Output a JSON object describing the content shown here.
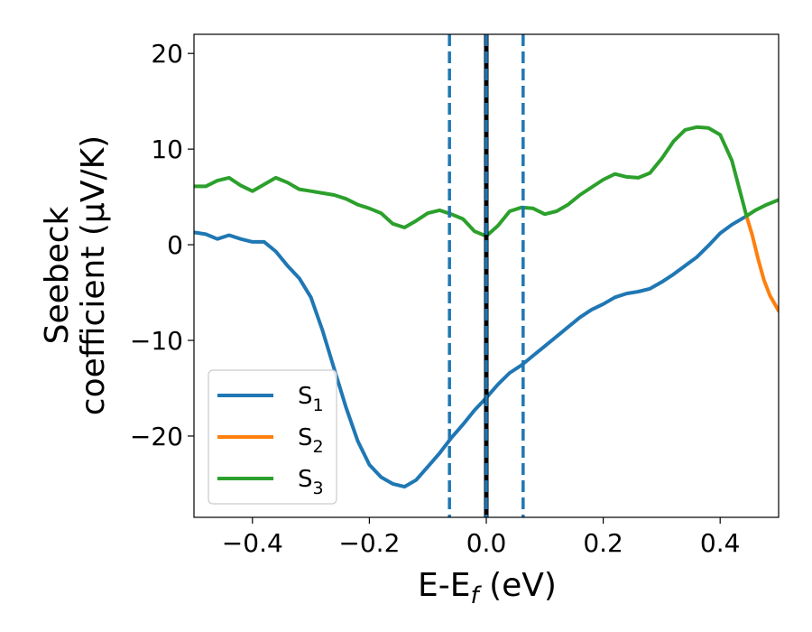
{
  "chart_data": {
    "type": "line",
    "xlabel_main": "E-E",
    "xlabel_sub": "f",
    "xlabel_tail": " (eV)",
    "ylabel_line1": "Seebeck",
    "ylabel_line2": "coefficient  (μV/K)",
    "xlim": [
      -0.5,
      0.5
    ],
    "ylim": [
      -28.5,
      22
    ],
    "xticks": [
      -0.4,
      -0.2,
      0.0,
      0.2,
      0.4
    ],
    "xtick_labels": [
      "−0.4",
      "−0.2",
      "0.0",
      "0.2",
      "0.4"
    ],
    "yticks": [
      -20,
      -10,
      0,
      10,
      20
    ],
    "ytick_labels": [
      "−20",
      "−10",
      "0",
      "10",
      "20"
    ],
    "grid": false,
    "legend_position": "lower-left",
    "vlines": [
      {
        "x": -0.063,
        "style": "dashed",
        "color": "#1f77b4"
      },
      {
        "x": 0.0,
        "style": "solid",
        "color": "#000000"
      },
      {
        "x": 0.0,
        "style": "dashed",
        "color": "#1f77b4"
      },
      {
        "x": 0.063,
        "style": "dashed",
        "color": "#1f77b4"
      }
    ],
    "series": [
      {
        "name": "S",
        "sub": "1",
        "color": "#1f77b4",
        "points": [
          [
            -0.5,
            1.3
          ],
          [
            -0.48,
            1.1
          ],
          [
            -0.46,
            0.6
          ],
          [
            -0.44,
            1.0
          ],
          [
            -0.42,
            0.6
          ],
          [
            -0.4,
            0.3
          ],
          [
            -0.38,
            0.3
          ],
          [
            -0.36,
            -0.7
          ],
          [
            -0.34,
            -2.2
          ],
          [
            -0.32,
            -3.5
          ],
          [
            -0.3,
            -5.5
          ],
          [
            -0.28,
            -9.0
          ],
          [
            -0.26,
            -13.0
          ],
          [
            -0.24,
            -17.0
          ],
          [
            -0.22,
            -20.5
          ],
          [
            -0.2,
            -23.0
          ],
          [
            -0.18,
            -24.3
          ],
          [
            -0.16,
            -25.0
          ],
          [
            -0.14,
            -25.3
          ],
          [
            -0.12,
            -24.6
          ],
          [
            -0.1,
            -23.2
          ],
          [
            -0.08,
            -21.8
          ],
          [
            -0.06,
            -20.2
          ],
          [
            -0.04,
            -18.8
          ],
          [
            -0.02,
            -17.3
          ],
          [
            0.0,
            -16.0
          ],
          [
            0.02,
            -14.6
          ],
          [
            0.04,
            -13.4
          ],
          [
            0.06,
            -12.6
          ],
          [
            0.08,
            -11.6
          ],
          [
            0.1,
            -10.6
          ],
          [
            0.12,
            -9.6
          ],
          [
            0.14,
            -8.6
          ],
          [
            0.16,
            -7.6
          ],
          [
            0.18,
            -6.8
          ],
          [
            0.2,
            -6.2
          ],
          [
            0.22,
            -5.5
          ],
          [
            0.24,
            -5.1
          ],
          [
            0.26,
            -4.9
          ],
          [
            0.28,
            -4.6
          ],
          [
            0.3,
            -3.9
          ],
          [
            0.32,
            -3.1
          ],
          [
            0.34,
            -2.2
          ],
          [
            0.36,
            -1.3
          ],
          [
            0.38,
            -0.1
          ],
          [
            0.4,
            1.2
          ],
          [
            0.42,
            2.1
          ],
          [
            0.445,
            3.0
          ]
        ]
      },
      {
        "name": "S",
        "sub": "2",
        "color": "#ff7f0e",
        "points": [
          [
            0.445,
            3.0
          ],
          [
            0.455,
            1.0
          ],
          [
            0.465,
            -1.5
          ],
          [
            0.475,
            -3.7
          ],
          [
            0.485,
            -5.3
          ],
          [
            0.5,
            -6.9
          ]
        ]
      },
      {
        "name": "S",
        "sub": "3",
        "color": "#2ca02c",
        "points": [
          [
            -0.5,
            6.1
          ],
          [
            -0.48,
            6.1
          ],
          [
            -0.46,
            6.7
          ],
          [
            -0.44,
            7.0
          ],
          [
            -0.42,
            6.2
          ],
          [
            -0.4,
            5.6
          ],
          [
            -0.38,
            6.3
          ],
          [
            -0.36,
            7.0
          ],
          [
            -0.34,
            6.5
          ],
          [
            -0.32,
            5.8
          ],
          [
            -0.3,
            5.6
          ],
          [
            -0.28,
            5.4
          ],
          [
            -0.26,
            5.2
          ],
          [
            -0.24,
            4.8
          ],
          [
            -0.22,
            4.2
          ],
          [
            -0.2,
            3.8
          ],
          [
            -0.18,
            3.3
          ],
          [
            -0.16,
            2.2
          ],
          [
            -0.14,
            1.8
          ],
          [
            -0.12,
            2.5
          ],
          [
            -0.1,
            3.3
          ],
          [
            -0.08,
            3.6
          ],
          [
            -0.06,
            3.2
          ],
          [
            -0.04,
            2.7
          ],
          [
            -0.02,
            1.4
          ],
          [
            0.0,
            0.9
          ],
          [
            0.02,
            2.0
          ],
          [
            0.04,
            3.5
          ],
          [
            0.06,
            3.9
          ],
          [
            0.08,
            3.8
          ],
          [
            0.1,
            3.2
          ],
          [
            0.12,
            3.5
          ],
          [
            0.14,
            4.2
          ],
          [
            0.16,
            5.2
          ],
          [
            0.18,
            6.0
          ],
          [
            0.2,
            6.8
          ],
          [
            0.22,
            7.4
          ],
          [
            0.24,
            7.1
          ],
          [
            0.26,
            7.0
          ],
          [
            0.28,
            7.5
          ],
          [
            0.3,
            9.0
          ],
          [
            0.32,
            10.8
          ],
          [
            0.34,
            12.0
          ],
          [
            0.36,
            12.3
          ],
          [
            0.38,
            12.2
          ],
          [
            0.4,
            11.5
          ],
          [
            0.42,
            8.8
          ],
          [
            0.445,
            3.0
          ],
          [
            0.46,
            3.6
          ],
          [
            0.48,
            4.2
          ],
          [
            0.5,
            4.7
          ]
        ]
      }
    ]
  }
}
